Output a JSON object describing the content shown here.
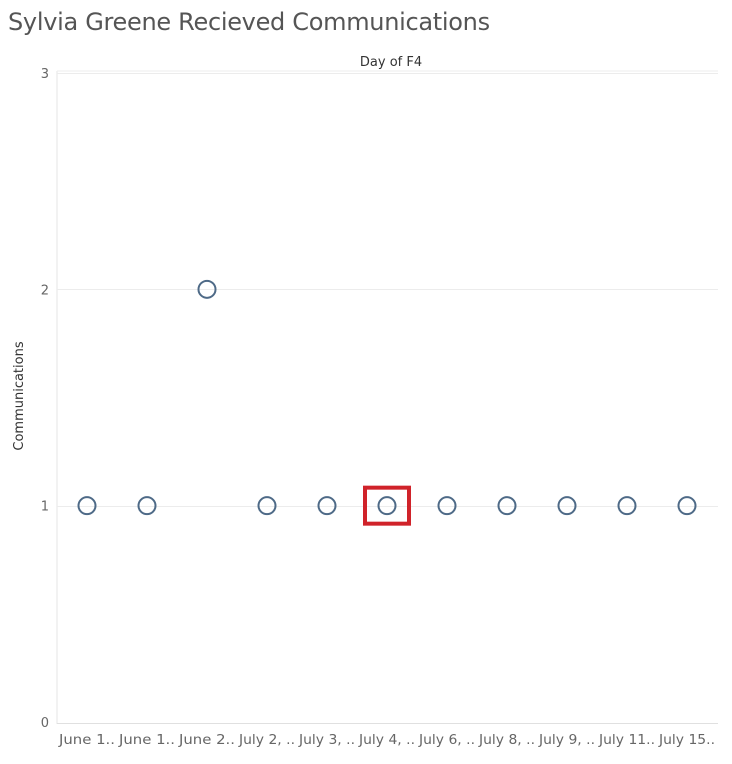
{
  "title": "Sylvia Greene Recieved Communications",
  "chart_data": {
    "type": "scatter",
    "title": "Sylvia Greene Recieved Communications",
    "column_header": "Day of F4",
    "ylabel": "Communications",
    "ylim": [
      0,
      3
    ],
    "y_ticks": [
      "0",
      "1",
      "2",
      "3"
    ],
    "categories": [
      "June 1..",
      "June 1..",
      "June 2..",
      "July 2, ..",
      "July 3, ..",
      "July 4, ..",
      "July 6, ..",
      "July 8, ..",
      "July 9, ..",
      "July 11..",
      "July 15.."
    ],
    "values": [
      1,
      1,
      2,
      1,
      1,
      1,
      1,
      1,
      1,
      1,
      1
    ],
    "highlighted_index": 5,
    "grid": true,
    "colors": {
      "marker": "#4e6a87",
      "highlight": "#d0232a",
      "grid": "#ececec"
    }
  }
}
